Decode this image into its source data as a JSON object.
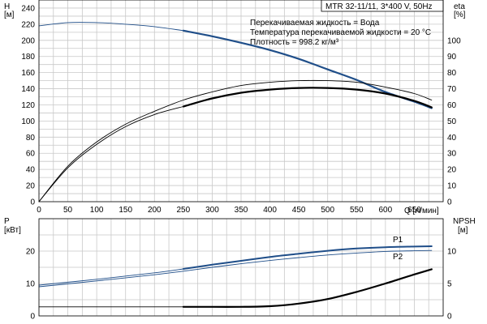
{
  "header": "MTR 32-11/11, 3*400 V, 50Hz",
  "info_lines": [
    "Перекачиваемая жидкость = Вода",
    "Температура перекачиваемой жидкости = 20 °C",
    "Плотность = 998.2 кг/м³"
  ],
  "colors": {
    "blue": "#1f4e89",
    "black": "#000000",
    "grid": "#c8c8c8"
  },
  "chart_data": [
    {
      "type": "line",
      "panel": "upper",
      "xlabel": "Q [л/мин]",
      "x_ticks": [
        0,
        50,
        100,
        150,
        200,
        250,
        300,
        350,
        400,
        450,
        500,
        550,
        600,
        650
      ],
      "xlim": [
        0,
        700
      ],
      "left_axis": {
        "label_top": "H",
        "label_unit": "[м]",
        "ylim": [
          0,
          250
        ],
        "ticks": [
          0,
          20,
          40,
          60,
          80,
          100,
          120,
          140,
          160,
          180,
          200,
          220,
          240
        ]
      },
      "right_axis": {
        "label_top": "eta",
        "label_unit": "[%]",
        "ylim": [
          0,
          125
        ],
        "ticks": [
          0,
          10,
          20,
          30,
          40,
          50,
          60,
          70,
          80,
          90,
          100
        ]
      },
      "series": [
        {
          "name": "",
          "axis": "left",
          "color": "#1f4e89",
          "width": 0.9,
          "x": [
            0,
            50,
            100,
            150,
            200,
            250
          ],
          "y": [
            218,
            222,
            222,
            220,
            217,
            212
          ]
        },
        {
          "name": "",
          "axis": "left",
          "color": "#1f4e89",
          "width": 2.2,
          "x": [
            250,
            300,
            350,
            400,
            450,
            500,
            550,
            600,
            650,
            680
          ],
          "y": [
            212,
            205,
            197,
            188,
            177,
            164,
            151,
            136,
            124,
            116
          ]
        },
        {
          "name": "",
          "axis": "right",
          "color": "#000000",
          "width": 0.9,
          "x": [
            0,
            50,
            100,
            150,
            200,
            250,
            300,
            350,
            400,
            450,
            500,
            550,
            600,
            650,
            680
          ],
          "y": [
            0,
            22,
            37,
            48,
            56,
            63,
            68,
            72,
            74,
            75,
            75,
            74,
            71,
            67,
            63
          ]
        },
        {
          "name": "",
          "axis": "right",
          "color": "#000000",
          "width": 0.9,
          "x": [
            0,
            50,
            100,
            150,
            200,
            250
          ],
          "y": [
            0,
            21,
            35.5,
            46.5,
            54,
            59
          ]
        },
        {
          "name": "",
          "axis": "right",
          "color": "#000000",
          "width": 2.2,
          "x": [
            250,
            300,
            350,
            400,
            450,
            500,
            550,
            600,
            650,
            680
          ],
          "y": [
            59,
            64,
            67.5,
            69.5,
            70.5,
            70.5,
            69.5,
            67,
            62.5,
            58.5
          ]
        }
      ]
    },
    {
      "type": "line",
      "panel": "lower",
      "xlim": [
        0,
        700
      ],
      "left_axis": {
        "label_top": "P",
        "label_unit": "[кВт]",
        "ylim": [
          0,
          30
        ],
        "ticks": [
          0,
          10,
          20
        ]
      },
      "right_axis": {
        "label_top": "NPSH",
        "label_unit": "[м]",
        "ylim": [
          0,
          15
        ],
        "ticks": [
          0,
          5,
          10
        ]
      },
      "series": [
        {
          "name": "P1",
          "axis": "left",
          "color": "#1f4e89",
          "width": 0.9,
          "x": [
            0,
            100,
            200,
            250
          ],
          "y": [
            9.5,
            11.3,
            13.3,
            14.5
          ]
        },
        {
          "name": "P1",
          "axis": "left",
          "color": "#1f4e89",
          "width": 2.0,
          "x": [
            250,
            300,
            350,
            400,
            450,
            500,
            550,
            600,
            650,
            680
          ],
          "y": [
            14.5,
            15.8,
            17,
            18.2,
            19.2,
            20.1,
            20.8,
            21.2,
            21.4,
            21.5
          ]
        },
        {
          "name": "P2",
          "axis": "left",
          "color": "#1f4e89",
          "width": 0.9,
          "x": [
            0,
            100,
            200,
            250,
            300,
            350,
            400,
            450,
            500,
            550,
            600,
            650,
            680
          ],
          "y": [
            9.0,
            10.8,
            12.7,
            13.8,
            15,
            16.1,
            17.1,
            18,
            18.8,
            19.4,
            19.9,
            20.1,
            20.2
          ]
        },
        {
          "name": "",
          "axis": "right",
          "color": "#000000",
          "width": 0.9,
          "x": [
            0,
            250
          ],
          "y": [
            1.4,
            1.4
          ]
        },
        {
          "name": "",
          "axis": "right",
          "color": "#000000",
          "width": 2.2,
          "x": [
            250,
            300,
            350,
            400,
            450,
            500,
            550,
            600,
            650,
            680
          ],
          "y": [
            1.4,
            1.4,
            1.4,
            1.5,
            1.9,
            2.6,
            3.7,
            5.0,
            6.4,
            7.2
          ]
        }
      ]
    }
  ]
}
